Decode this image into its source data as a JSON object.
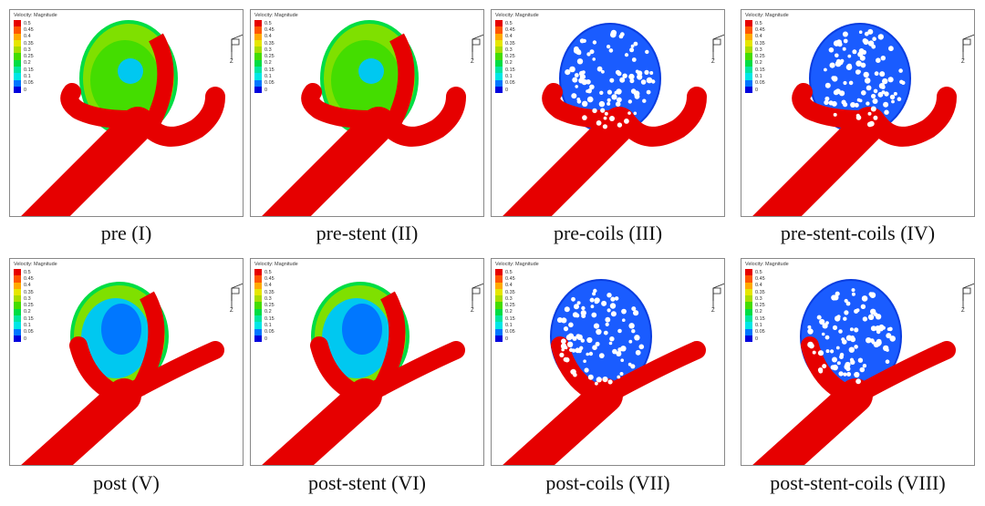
{
  "legend": {
    "title": "Velocity: Magnitude",
    "levels": [
      {
        "value": "0.5",
        "color": "#e60000"
      },
      {
        "value": "0.45",
        "color": "#ff5500"
      },
      {
        "value": "0.4",
        "color": "#ffaa00"
      },
      {
        "value": "0.35",
        "color": "#e6e600"
      },
      {
        "value": "0.3",
        "color": "#aadd00"
      },
      {
        "value": "0.25",
        "color": "#44dd00"
      },
      {
        "value": "0.2",
        "color": "#00dd44"
      },
      {
        "value": "0.15",
        "color": "#00e6a0"
      },
      {
        "value": "0.1",
        "color": "#00e6e6"
      },
      {
        "value": "0.05",
        "color": "#0077ff"
      },
      {
        "value": "0",
        "color": "#0000dd"
      }
    ]
  },
  "axes": {
    "y": "Y",
    "z": "Z"
  },
  "panels": [
    {
      "caption": "pre (I)",
      "row": "pre",
      "dome_style": "flow"
    },
    {
      "caption": "pre-stent (II)",
      "row": "pre",
      "dome_style": "flow"
    },
    {
      "caption": "pre-coils (III)",
      "row": "pre",
      "dome_style": "coils"
    },
    {
      "caption": "pre-stent-coils (IV)",
      "row": "pre",
      "dome_style": "coils"
    },
    {
      "caption": "post (V)",
      "row": "post",
      "dome_style": "flow"
    },
    {
      "caption": "post-stent (VI)",
      "row": "post",
      "dome_style": "flow"
    },
    {
      "caption": "post-coils (VII)",
      "row": "post",
      "dome_style": "coils"
    },
    {
      "caption": "post-stent-coils (VIII)",
      "row": "post",
      "dome_style": "coils"
    }
  ]
}
